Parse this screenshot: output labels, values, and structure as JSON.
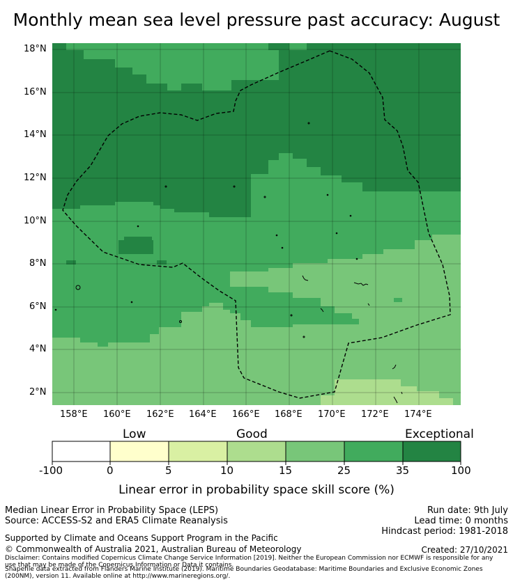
{
  "title": "Monthly mean sea level pressure past accuracy: August",
  "map": {
    "lat_labels": [
      "18°N",
      "16°N",
      "14°N",
      "12°N",
      "10°N",
      "8°N",
      "6°N",
      "4°N",
      "2°N"
    ],
    "lon_labels": [
      "158°E",
      "160°E",
      "162°E",
      "164°E",
      "166°E",
      "168°E",
      "170°E",
      "172°E",
      "174°E"
    ],
    "lon_range": [
      157,
      176
    ],
    "lat_range": [
      1.4,
      18.3
    ],
    "border_style": "dashed",
    "boundary_name_shown": false
  },
  "colorbar": {
    "categories": [
      "Low",
      "Good",
      "Exceptional"
    ],
    "ticks": [
      "-100",
      "0",
      "5",
      "10",
      "15",
      "25",
      "35",
      "100"
    ],
    "colors": [
      "#ffffff",
      "#ffffcc",
      "#d9f0a3",
      "#addd8e",
      "#78c679",
      "#41ab5d",
      "#238443"
    ],
    "label": "Linear error in probability space skill score (%)"
  },
  "footer": {
    "method": "Median Linear Error in Probability Space (LEPS)",
    "source": "Source: ACCESS-S2 and ERA5 Climate Reanalysis",
    "support": "Supported by Climate and Oceans Support Program in the Pacific",
    "copyright": "© Commonwealth of Australia 2021, Australian Bureau of Meteorology",
    "disclaimer_1": "Disclaimer: Contains modified Copernicus Climate Change Service Information [2019]. Neither the European Commission nor ECMWF is responsible for any",
    "disclaimer_2": "use that may be made of the Copernicus Information or Data it contains.",
    "shapefile_1": "Shapefile data extracted from Flanders Marine Institute (2019). Maritime Boundaries Geodatabase: Maritime Boundaries and Exclusive Economic Zones",
    "shapefile_2": "(200NM), version 11. Available online at http://www.marineregions.org/.",
    "run_date": "Run date: 9th July",
    "lead_time": "Lead time: 0 months",
    "hindcast": "Hindcast period: 1981-2018",
    "created": "Created: 27/10/2021"
  }
}
